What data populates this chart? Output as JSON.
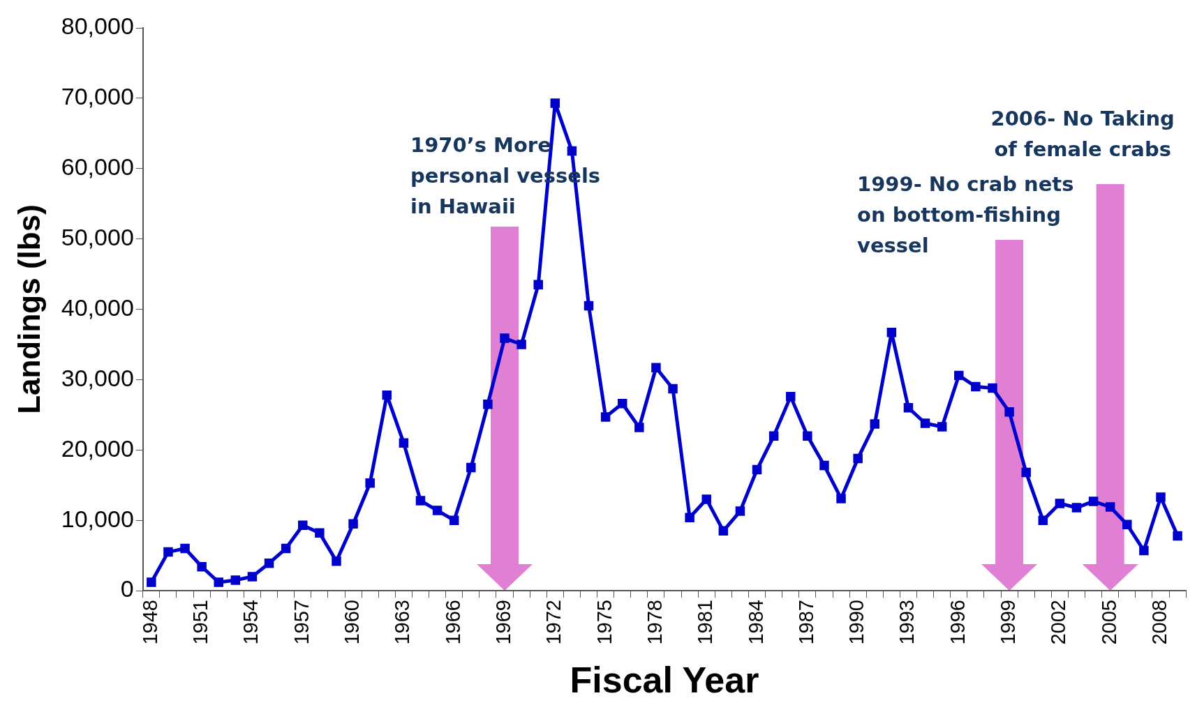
{
  "chart_data": {
    "type": "line",
    "xlabel": "Fiscal Year",
    "ylabel": "Landings (lbs)",
    "categories": [
      "1948",
      null,
      null,
      "1951",
      null,
      null,
      "1954",
      null,
      null,
      "1957",
      null,
      null,
      "1960",
      null,
      null,
      "1963",
      null,
      null,
      "1966",
      null,
      null,
      "1969",
      null,
      null,
      "1972",
      null,
      null,
      "1975",
      null,
      null,
      "1978",
      null,
      null,
      "1981",
      null,
      null,
      "1984",
      null,
      null,
      "1987",
      null,
      null,
      "1990",
      null,
      null,
      "1993",
      null,
      null,
      "1996",
      null,
      null,
      "1999",
      null,
      null,
      "2002",
      null,
      null,
      "2005",
      null,
      null,
      "2008",
      null
    ],
    "series": [
      {
        "color": "#0000cc",
        "values": [
          1200,
          5500,
          6000,
          3400,
          1200,
          1500,
          2000,
          3900,
          6000,
          9300,
          8200,
          4200,
          9500,
          15300,
          27800,
          21000,
          12800,
          11400,
          10000,
          17500,
          26500,
          35900,
          35000,
          43500,
          69300,
          62500,
          40500,
          24700,
          26600,
          23200,
          31700,
          28700,
          10400,
          13000,
          8500,
          11300,
          17200,
          22000,
          27600,
          22000,
          17800,
          13100,
          18800,
          23700,
          36700,
          26000,
          23800,
          23300,
          30600,
          29000,
          28800,
          25400,
          16800,
          10000,
          12400,
          11800,
          12700,
          11900,
          9400,
          5700,
          13300,
          7800
        ]
      }
    ],
    "ylim": [
      0,
      80000
    ],
    "yticks": [
      0,
      {
        "value": 10000,
        "label": "10,000"
      },
      {
        "value": 20000,
        "label": "20,000"
      },
      {
        "value": 30000,
        "label": "30,000"
      },
      {
        "value": 40000,
        "label": "40,000"
      },
      {
        "value": 50000,
        "label": "50,000"
      },
      {
        "value": 60000,
        "label": "60,000"
      },
      {
        "value": 70000,
        "label": "70,000"
      },
      {
        "value": 80000,
        "label": "80,000"
      }
    ],
    "marker": "square",
    "legend": false,
    "annotations": [
      "1970’s More\npersonal vessels\nin Hawaii",
      "1999- No crab nets\non bottom-fishing\nvessel",
      "2006- No Taking\nof female crabs"
    ]
  }
}
